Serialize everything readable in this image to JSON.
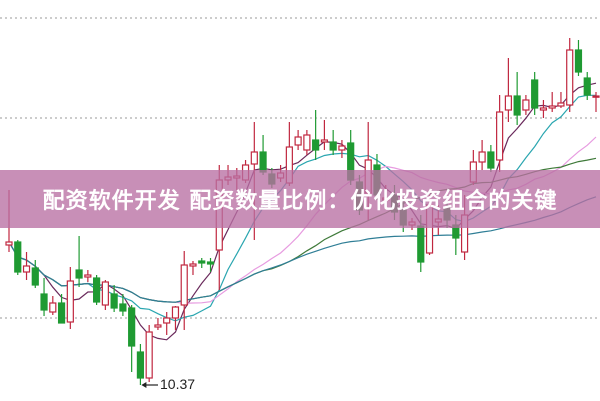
{
  "title_overlay": "配资软件开发 配资数量比例：优化投资组合的关键",
  "chart_data": {
    "type": "candlestick",
    "title": "配资软件开发 配资数量比例：优化投资组合的关键",
    "xlabel": "",
    "ylabel": "",
    "grid": true,
    "ylim": [
      10.2,
      14.22
    ],
    "annotation": {
      "label": "10.37",
      "value": 10.37,
      "candle_index": 15
    },
    "colors": {
      "up": "#c0273f",
      "down": "#1f9a32",
      "banner": "#b870a3",
      "ma": [
        "#6a2a5c",
        "#2aa6b0",
        "#e79be0",
        "#3f7a3a",
        "#2f7e96"
      ]
    },
    "moving_average_periods": [
      5,
      10,
      20,
      30,
      60
    ],
    "candles_ohlc": [
      [
        11.77,
        11.8,
        12.32,
        11.7
      ],
      [
        11.8,
        11.5,
        11.82,
        11.47
      ],
      [
        11.5,
        11.56,
        11.7,
        11.42
      ],
      [
        11.54,
        11.37,
        11.62,
        11.34
      ],
      [
        11.28,
        11.12,
        11.44,
        11.06
      ],
      [
        11.1,
        11.19,
        11.26,
        11.07
      ],
      [
        11.19,
        10.99,
        11.28,
        10.99
      ],
      [
        11.0,
        11.41,
        11.55,
        10.93
      ],
      [
        11.52,
        11.44,
        11.86,
        11.35
      ],
      [
        11.45,
        11.47,
        11.52,
        11.4
      ],
      [
        11.44,
        11.2,
        11.47,
        11.17
      ],
      [
        11.17,
        11.4,
        11.42,
        11.12
      ],
      [
        11.28,
        11.14,
        11.37,
        11.1
      ],
      [
        11.18,
        11.11,
        11.28,
        11.06
      ],
      [
        11.14,
        10.76,
        11.17,
        10.5
      ],
      [
        10.7,
        10.44,
        10.78,
        10.37
      ],
      [
        10.44,
        10.9,
        10.97,
        10.4
      ],
      [
        10.95,
        10.97,
        11.04,
        10.92
      ],
      [
        10.99,
        11.04,
        11.1,
        10.87
      ],
      [
        11.04,
        11.15,
        11.16,
        10.92
      ],
      [
        11.17,
        11.57,
        11.71,
        10.92
      ],
      [
        11.56,
        11.58,
        11.61,
        11.47
      ],
      [
        11.61,
        11.59,
        11.64,
        11.54
      ],
      [
        11.6,
        11.58,
        11.64,
        11.5
      ],
      [
        11.72,
        12.42,
        12.57,
        11.32
      ],
      [
        12.42,
        12.45,
        12.57,
        12.37
      ],
      [
        12.44,
        12.46,
        12.54,
        12.32
      ],
      [
        12.42,
        12.57,
        12.62,
        12.39
      ],
      [
        12.58,
        12.7,
        13.0,
        11.82
      ],
      [
        12.7,
        12.5,
        12.87,
        12.47
      ],
      [
        12.48,
        12.38,
        12.54,
        12.34
      ],
      [
        12.44,
        12.49,
        12.57,
        12.4
      ],
      [
        12.39,
        12.75,
        13.0,
        12.36
      ],
      [
        12.77,
        12.85,
        12.92,
        12.72
      ],
      [
        12.72,
        12.87,
        12.92,
        12.67
      ],
      [
        12.82,
        12.72,
        13.12,
        12.62
      ],
      [
        12.8,
        12.82,
        13.02,
        12.72
      ],
      [
        12.8,
        12.72,
        12.92,
        12.67
      ],
      [
        12.72,
        12.76,
        12.82,
        12.64
      ],
      [
        12.79,
        12.42,
        12.92,
        12.37
      ],
      [
        12.4,
        12.12,
        12.47,
        12.07
      ],
      [
        12.29,
        12.62,
        13.0,
        12.02
      ],
      [
        12.57,
        12.27,
        12.68,
        12.22
      ],
      [
        12.22,
        12.24,
        12.37,
        12.12
      ],
      [
        12.27,
        12.1,
        12.37,
        12.02
      ],
      [
        12.12,
        11.97,
        12.22,
        11.9
      ],
      [
        11.97,
        12.0,
        12.04,
        11.92
      ],
      [
        11.96,
        11.6,
        12.07,
        11.5
      ],
      [
        11.69,
        12.17,
        12.27,
        11.67
      ],
      [
        12.0,
        12.03,
        12.17,
        11.87
      ],
      [
        12.14,
        12.02,
        12.22,
        11.94
      ],
      [
        11.97,
        11.84,
        12.07,
        11.67
      ],
      [
        11.7,
        12.07,
        12.27,
        11.62
      ],
      [
        12.4,
        12.6,
        12.72,
        12.37
      ],
      [
        12.6,
        12.7,
        12.82,
        12.52
      ],
      [
        12.7,
        12.54,
        12.77,
        12.5
      ],
      [
        12.62,
        13.1,
        13.27,
        12.5
      ],
      [
        13.12,
        13.26,
        13.64,
        13.0
      ],
      [
        13.26,
        13.07,
        13.5,
        12.97
      ],
      [
        13.12,
        13.22,
        13.27,
        13.07
      ],
      [
        13.42,
        13.14,
        13.5,
        13.07
      ],
      [
        13.12,
        13.14,
        13.22,
        13.04
      ],
      [
        13.14,
        13.16,
        13.3,
        13.1
      ],
      [
        13.16,
        13.19,
        13.3,
        13.14
      ],
      [
        13.17,
        13.72,
        13.84,
        13.1
      ],
      [
        13.72,
        13.5,
        13.82,
        13.46
      ],
      [
        13.44,
        13.27,
        13.5,
        13.22
      ],
      [
        13.25,
        13.26,
        13.3,
        13.1
      ]
    ]
  }
}
